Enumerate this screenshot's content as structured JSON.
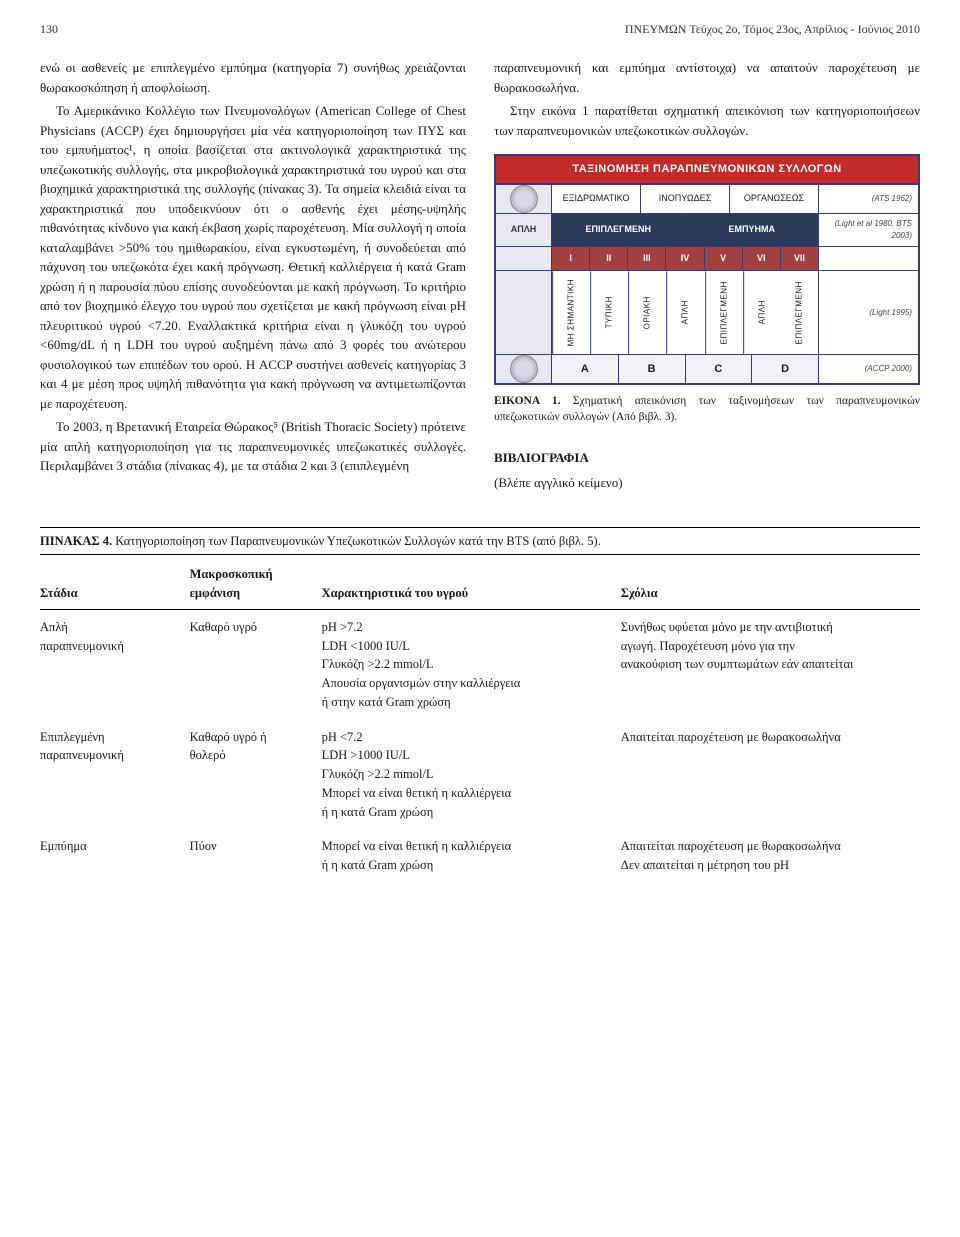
{
  "header": {
    "page_number": "130",
    "journal_line": "ΠΝΕΥΜΩΝ Τεύχος 2ο, Τόμος 23ος, Απρίλιος - Ιούνιος 2010"
  },
  "left_column": {
    "p1": "ενώ οι ασθενείς με επιπλεγμένο εμπύημα (κατηγορία 7) συνήθως χρειάζονται θωρακοσκόπηση ή αποφλοίωση.",
    "p2": "Το Αμερικάνικο Κολλέγιο των Πνευμονολόγων (American College of Chest Physicians (ACCP) έχει δημιουργήσει μία νέα κατηγοριοποίηση των ΠΥΣ και του εμπυήματος¹, η οποία βασίζεται στα ακτινολογικά χαρακτηριστικά της υπεζωκοτικής συλλογής, στα μικροβιολογικά χαρακτηριστικά του υγρού και στα βιοχημικά χαρακτηριστικά της συλλογής (πίνακας 3). Τα σημεία κλειδιά είναι τα χαρακτηριστικά που υποδεικνύουν ότι ο ασθενής έχει μέσης-υψηλής πιθανότητας κίνδυνο για κακή έκβαση χωρίς παροχέτευση. Μία συλλογή η οποία καταλαμβάνει >50% του ημιθωρακίου, είναι εγκυστωμένη, ή συνοδεύεται από πάχυνση του υπεζωκότα έχει κακή πρόγνωση. Θετική καλλιέργεια ή κατά Gram χρώση ή η παρουσία πύου επίσης συνοδεύονται με κακή πρόγνωση. Το κριτήριο από τον βιοχημικό έλεγχο του υγρού που σχετίζεται με κακή πρόγνωση είναι pH πλευριτικού υγρού <7.20. Εναλλακτικά κριτήρια είναι η γλυκόζη του υγρού <60mg/dL ή η LDH του υγρού αυξημένη πάνω από 3 φορές του ανώτερου φυσιολογικού των επιπέδων του ορού. Η ACCP συστήνει ασθενείς κατηγορίας 3 και 4 με μέση προς υψηλή πιθανότητα για κακή πρόγνωση να αντιμετωπίζονται με παροχέτευση.",
    "p3": "Το 2003, η Βρετανική Εταιρεία Θώρακος⁵ (British Thoracic Society) πρότεινε μία απλή κατηγοριοποίηση για τις παραπνευμονικές υπεζωκοτικές συλλογές. Περιλαμβάνει 3 στάδια (πίνακας 4), με τα στάδια 2 και 3 (επιπλεγμένη"
  },
  "right_column": {
    "p1": "παραπνευμονική και εμπύημα αντίστοιχα) να απαιτούν παροχέτευση με θωρακοσωλήνα.",
    "p2": "Στην εικόνα 1 παρατίθεται σχηματική απεικόνιση των κατηγοριοποιήσεων των παραπνευμονικών υπεζωκοτικών συλλογών."
  },
  "figure": {
    "chart_title": "ΤΑΞΙΝΟΜΗΣΗ ΠΑΡΑΠΝΕΥΜΟΝΙΚΩΝ ΣΥΛΛΟΓΩΝ",
    "row1": {
      "cells": [
        "ΕΞΙΔΡΩΜΑΤΙΚΟ",
        "ΙΝΟΠΥΩΔΕΣ",
        "ΟΡΓΑΝΩΣΕΩΣ"
      ],
      "ref": "(ATS 1962)"
    },
    "row2": {
      "label": "ΑΠΛΗ",
      "cells": [
        "ΕΠΙΠΛΕΓΜΕΝΗ",
        "ΕΜΠΥΗΜΑ"
      ],
      "ref": "(Light et al 1980, BTS 2003)"
    },
    "roman": {
      "cells": [
        "I",
        "II",
        "III",
        "IV",
        "V",
        "VI",
        "VII"
      ],
      "ref": ""
    },
    "vert": {
      "cells": [
        "ΜΗ ΣΗΜΑΝΤΙΚΗ",
        "ΤΥΠΙΚΗ",
        "ΟΡΙΑΚΗ",
        "ΑΠΛΗ",
        "ΕΠΙΠΛΕΓΜΕΝΗ",
        "ΑΠΛΗ",
        "ΕΠΙΠΛΕΓΜΕΝΗ"
      ],
      "ref": "(Light 1995)"
    },
    "final": {
      "cells": [
        "A",
        "B",
        "C",
        "D"
      ],
      "ref": "(ACCP 2000)"
    },
    "caption_bold": "ΕΙΚΟΝΑ 1.",
    "caption_text": " Σχηματική απεικόνιση των ταξινομήσεων των παραπνευμονικών υπεζωκοτικών συλλογών (Από βιβλ. 3)."
  },
  "biblio": {
    "heading": "ΒΙΒΛΙΟΓΡΑΦΙΑ",
    "text": "(Βλέπε αγγλικό κείμενο)"
  },
  "table4": {
    "title_bold": "ΠΙΝΑΚΑΣ 4.",
    "title_rest": " Κατηγοριοποίηση των Παραπνευμονικών Υπεζωκοτικών Συλλογών κατά την BTS (από βιβλ. 5).",
    "headers": [
      "Στάδια",
      "Μακροσκοπική\nεμφάνιση",
      "Χαρακτηριστικά του υγρού",
      "Σχόλια"
    ],
    "rows": [
      {
        "c0": "Απλή\nπαραπνευμονική",
        "c1": "Καθαρό υγρό",
        "c2": "pH >7.2\nLDH <1000 IU/L\nΓλυκόζη >2.2 mmol/L\nΑπουσία οργανισμών στην καλλιέργεια\nή στην κατά Gram χρώση",
        "c3": "Συνήθως υφύεται μόνο με την αντιβιοτική\nαγωγή. Παροχέτευση μόνο για την\nανακούφιση των συμπτωμάτων εάν απαιτείται"
      },
      {
        "c0": "Επιπλεγμένη\nπαραπνευμονική",
        "c1": "Καθαρό υγρό ή\nθολερό",
        "c2": "pH <7.2\nLDH >1000 IU/L\nΓλυκόζη >2.2 mmol/L\nΜπορεί να είναι θετική η καλλιέργεια\nή η κατά Gram χρώση",
        "c3": "Απαιτείται παροχέτευση με θωρακοσωλήνα"
      },
      {
        "c0": "Εμπύημα",
        "c1": "Πύον",
        "c2": "Μπορεί να είναι θετική η καλλιέργεια\nή η κατά Gram χρώση",
        "c3": "Απαιτείται παροχέτευση με θωρακοσωλήνα\nΔεν απαιτείται η μέτρηση του pH"
      }
    ]
  }
}
